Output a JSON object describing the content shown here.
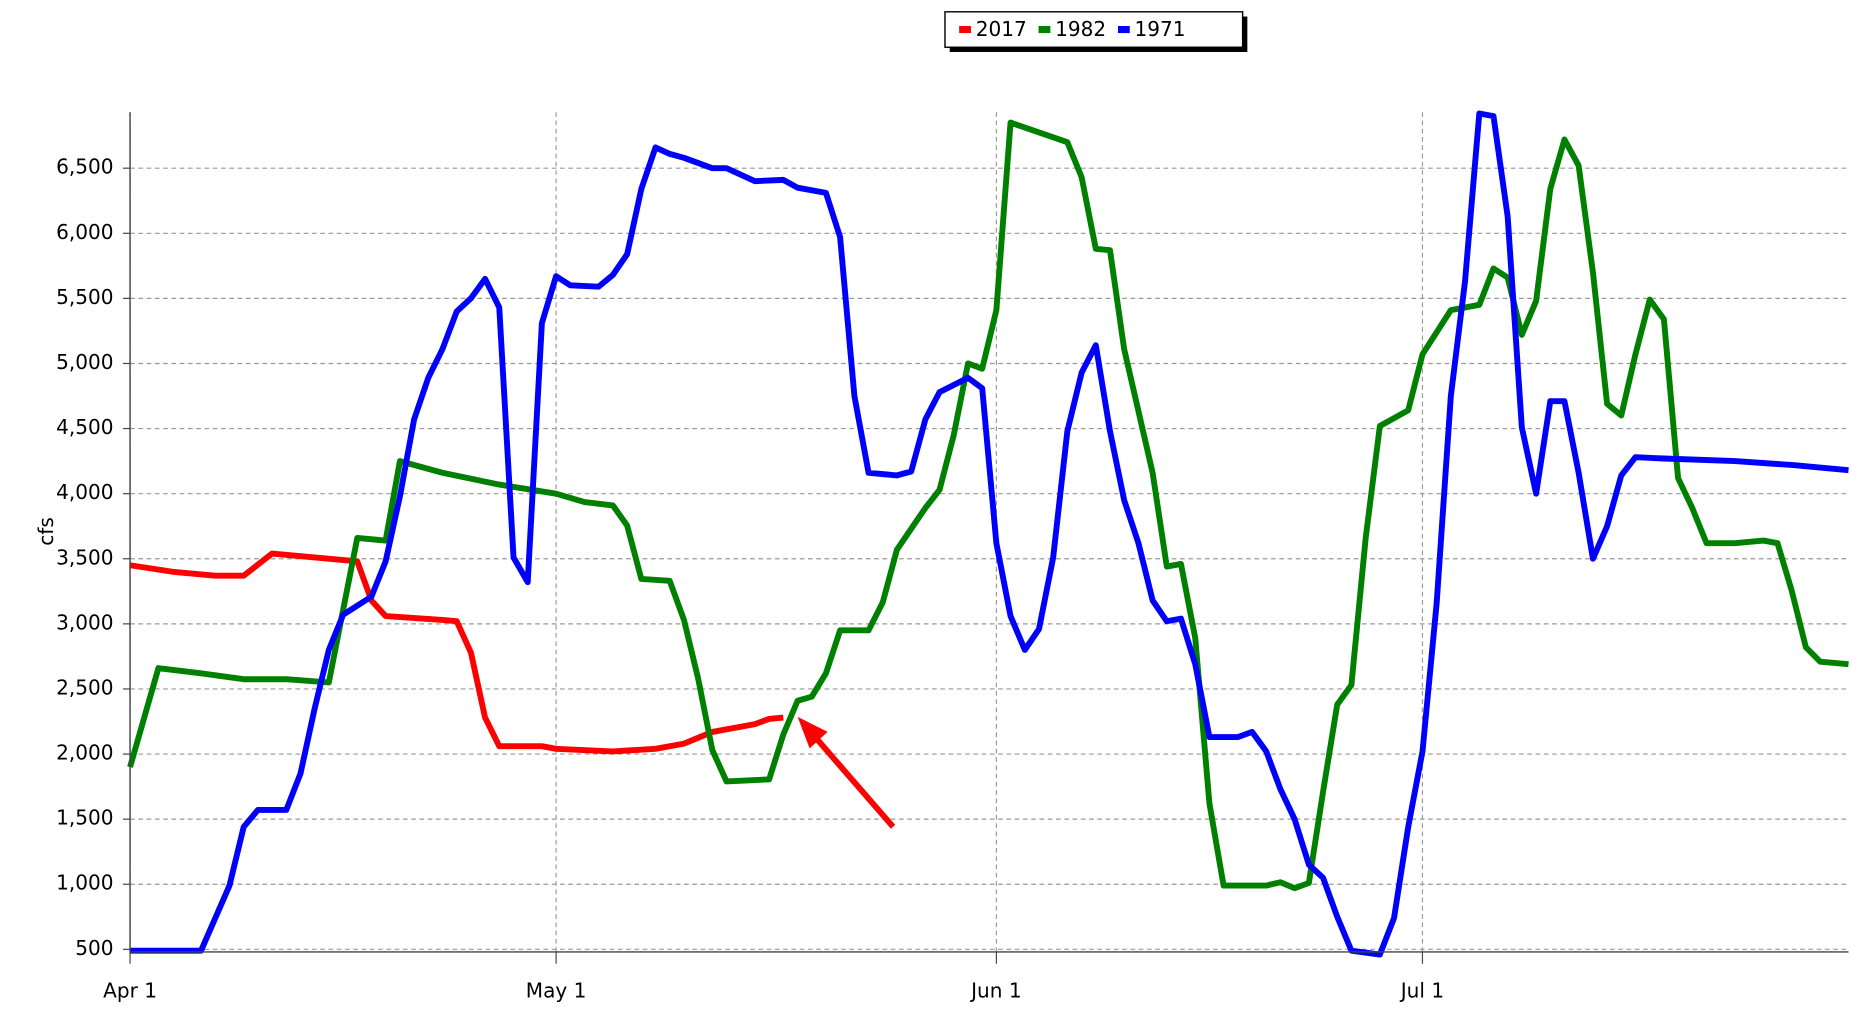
{
  "chart_data": {
    "type": "line",
    "ylabel": "cfs",
    "xlim": [
      0,
      121
    ],
    "xticks": [
      {
        "value": 0,
        "label": "Apr 1"
      },
      {
        "value": 30,
        "label": "May 1"
      },
      {
        "value": 61,
        "label": "Jun 1"
      },
      {
        "value": 91,
        "label": "Jul 1"
      }
    ],
    "ylim": [
      480,
      6930
    ],
    "yticks": [
      {
        "value": 500,
        "label": "500"
      },
      {
        "value": 1000,
        "label": "1,000"
      },
      {
        "value": 1500,
        "label": "1,500"
      },
      {
        "value": 2000,
        "label": "2,000"
      },
      {
        "value": 2500,
        "label": "2,500"
      },
      {
        "value": 3000,
        "label": "3,000"
      },
      {
        "value": 3500,
        "label": "3,500"
      },
      {
        "value": 4000,
        "label": "4,000"
      },
      {
        "value": 4500,
        "label": "4,500"
      },
      {
        "value": 5000,
        "label": "5,000"
      },
      {
        "value": 5500,
        "label": "5,500"
      },
      {
        "value": 6000,
        "label": "6,000"
      },
      {
        "value": 6500,
        "label": "6,500"
      }
    ],
    "grid": true,
    "legend": "top",
    "series": [
      {
        "name": "2017",
        "color": "#ff0000",
        "x": [
          0,
          3,
          6,
          8,
          10,
          13,
          16,
          17,
          18,
          22,
          23,
          24,
          25,
          26,
          29,
          30,
          34,
          37,
          39,
          41,
          44,
          45,
          46
        ],
        "values": [
          3450,
          3400,
          3370,
          3370,
          3540,
          3510,
          3480,
          3180,
          3060,
          3030,
          3020,
          2780,
          2280,
          2060,
          2060,
          2040,
          2020,
          2040,
          2080,
          2170,
          2230,
          2270,
          2280
        ]
      },
      {
        "name": "1982",
        "color": "#008000",
        "x": [
          0,
          2,
          5,
          8,
          11,
          14,
          16,
          18,
          19,
          22,
          26,
          30,
          32,
          34,
          35,
          36,
          38,
          39,
          40,
          41,
          42,
          45,
          46,
          47,
          48,
          49,
          50,
          52,
          53,
          54,
          56,
          57,
          58,
          59,
          60,
          61,
          62,
          66,
          67,
          68,
          69,
          70,
          72,
          73,
          74,
          75,
          76,
          77,
          80,
          81,
          82,
          83,
          84,
          85,
          86,
          87,
          88,
          90,
          91,
          93,
          95,
          96,
          97,
          98,
          99,
          100,
          101,
          102,
          103,
          104,
          105,
          106,
          107,
          108,
          109,
          110,
          111,
          113,
          115,
          116,
          117,
          118,
          119,
          121
        ],
        "values": [
          1900,
          2660,
          2620,
          2575,
          2575,
          2550,
          3660,
          3640,
          4250,
          4160,
          4070,
          4000,
          3935,
          3910,
          3755,
          3345,
          3330,
          3030,
          2580,
          2030,
          1790,
          1805,
          2150,
          2410,
          2440,
          2620,
          2950,
          2950,
          3165,
          3570,
          3890,
          4030,
          4450,
          5000,
          4960,
          5410,
          6850,
          6700,
          6430,
          5880,
          5870,
          5110,
          4160,
          3440,
          3460,
          2890,
          1620,
          990,
          990,
          1015,
          970,
          1010,
          1710,
          2380,
          2530,
          3660,
          4520,
          4640,
          5070,
          5410,
          5450,
          5730,
          5660,
          5220,
          5480,
          6340,
          6720,
          6520,
          5700,
          4690,
          4600,
          5070,
          5490,
          5340,
          4120,
          3890,
          3620,
          3620,
          3640,
          3620,
          3255,
          2820,
          2710,
          2690
        ]
      },
      {
        "name": "1971",
        "color": "#0000ff",
        "x": [
          0,
          5,
          7,
          8,
          9,
          11,
          12,
          13,
          14,
          15,
          17,
          18,
          19,
          20,
          21,
          22,
          23,
          24,
          25,
          26,
          27,
          28,
          29,
          30,
          31,
          33,
          34,
          35,
          36,
          37,
          38,
          39,
          41,
          42,
          44,
          46,
          47,
          49,
          50,
          51,
          52,
          54,
          55,
          56,
          57,
          59,
          60,
          61,
          62,
          63,
          64,
          65,
          66,
          67,
          68,
          69,
          70,
          71,
          72,
          73,
          74,
          75,
          76,
          78,
          79,
          80,
          81,
          82,
          83,
          84,
          85,
          86,
          88,
          89,
          90,
          91,
          92,
          93,
          94,
          95,
          96,
          97,
          98,
          99,
          100,
          101,
          102,
          103,
          104,
          105,
          106,
          108,
          113,
          117,
          121
        ],
        "values": [
          490,
          490,
          990,
          1440,
          1570,
          1570,
          1850,
          2350,
          2800,
          3070,
          3210,
          3480,
          3980,
          4570,
          4890,
          5110,
          5400,
          5500,
          5650,
          5430,
          3510,
          3320,
          5310,
          5670,
          5600,
          5590,
          5680,
          5840,
          6340,
          6660,
          6610,
          6580,
          6500,
          6500,
          6400,
          6410,
          6350,
          6310,
          5970,
          4750,
          4160,
          4140,
          4170,
          4570,
          4780,
          4890,
          4810,
          3620,
          3060,
          2800,
          2960,
          3510,
          4480,
          4930,
          5140,
          4480,
          3950,
          3620,
          3180,
          3020,
          3040,
          2690,
          2130,
          2130,
          2170,
          2020,
          1730,
          1500,
          1150,
          1050,
          750,
          490,
          460,
          740,
          1440,
          2020,
          3160,
          4750,
          5630,
          6920,
          6900,
          6130,
          4510,
          4000,
          4710,
          4710,
          4160,
          3500,
          3750,
          4140,
          4280,
          4270,
          4250,
          4220,
          4180
        ]
      }
    ]
  }
}
